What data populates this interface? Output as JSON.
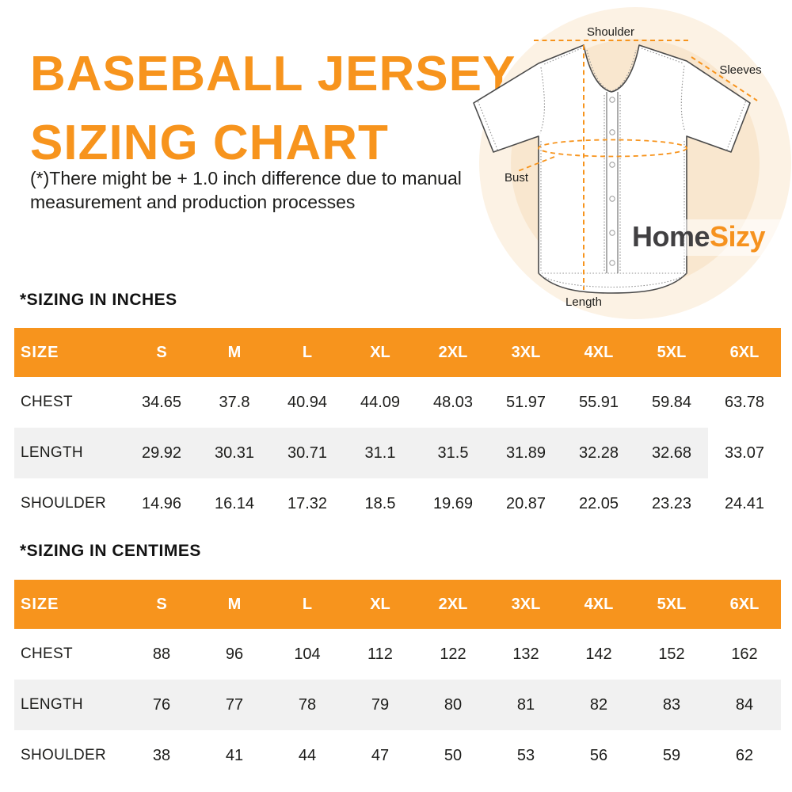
{
  "page_title": {
    "line1": "BASEBALL JERSEY",
    "line2": "SIZING CHART"
  },
  "disclaimer": "(*)There might be + 1.0 inch difference due to manual measurement and production processes",
  "diagram": {
    "labels": {
      "shoulder": "Shoulder",
      "sleeves": "Sleeves",
      "bust": "Bust",
      "length": "Length"
    },
    "logo": {
      "home": "Home",
      "sizy": "Sizy"
    }
  },
  "colors": {
    "accent": "#F7941D",
    "heading_text": "#121212",
    "body_text": "#1D1D1B",
    "row_alt_bg": "#F1F1F1",
    "logo_dark": "#414042",
    "logo_orange": "#F6921E",
    "circle_outer": "#FCF2E4",
    "circle_inner": "#F9E7CF"
  },
  "chart_data": [
    {
      "type": "table",
      "title": "*SIZING IN INCHES",
      "columns": [
        "SIZE",
        "S",
        "M",
        "L",
        "XL",
        "2XL",
        "3XL",
        "4XL",
        "5XL",
        "6XL"
      ],
      "rows": [
        {
          "label": "CHEST",
          "values": [
            "34.65",
            "37.8",
            "40.94",
            "44.09",
            "48.03",
            "51.97",
            "55.91",
            "59.84",
            "63.78"
          ]
        },
        {
          "label": "LENGTH",
          "values": [
            "29.92",
            "30.31",
            "30.71",
            "31.1",
            "31.5",
            "31.89",
            "32.28",
            "32.68",
            "33.07"
          ]
        },
        {
          "label": "SHOULDER",
          "values": [
            "14.96",
            "16.14",
            "17.32",
            "18.5",
            "19.69",
            "20.87",
            "22.05",
            "23.23",
            "24.41"
          ]
        }
      ]
    },
    {
      "type": "table",
      "title": "*SIZING IN CENTIMES",
      "columns": [
        "SIZE",
        "S",
        "M",
        "L",
        "XL",
        "2XL",
        "3XL",
        "4XL",
        "5XL",
        "6XL"
      ],
      "rows": [
        {
          "label": "CHEST",
          "values": [
            "88",
            "96",
            "104",
            "112",
            "122",
            "132",
            "142",
            "152",
            "162"
          ]
        },
        {
          "label": "LENGTH",
          "values": [
            "76",
            "77",
            "78",
            "79",
            "80",
            "81",
            "82",
            "83",
            "84"
          ]
        },
        {
          "label": "SHOULDER",
          "values": [
            "38",
            "41",
            "44",
            "47",
            "50",
            "53",
            "56",
            "59",
            "62"
          ]
        }
      ]
    }
  ]
}
